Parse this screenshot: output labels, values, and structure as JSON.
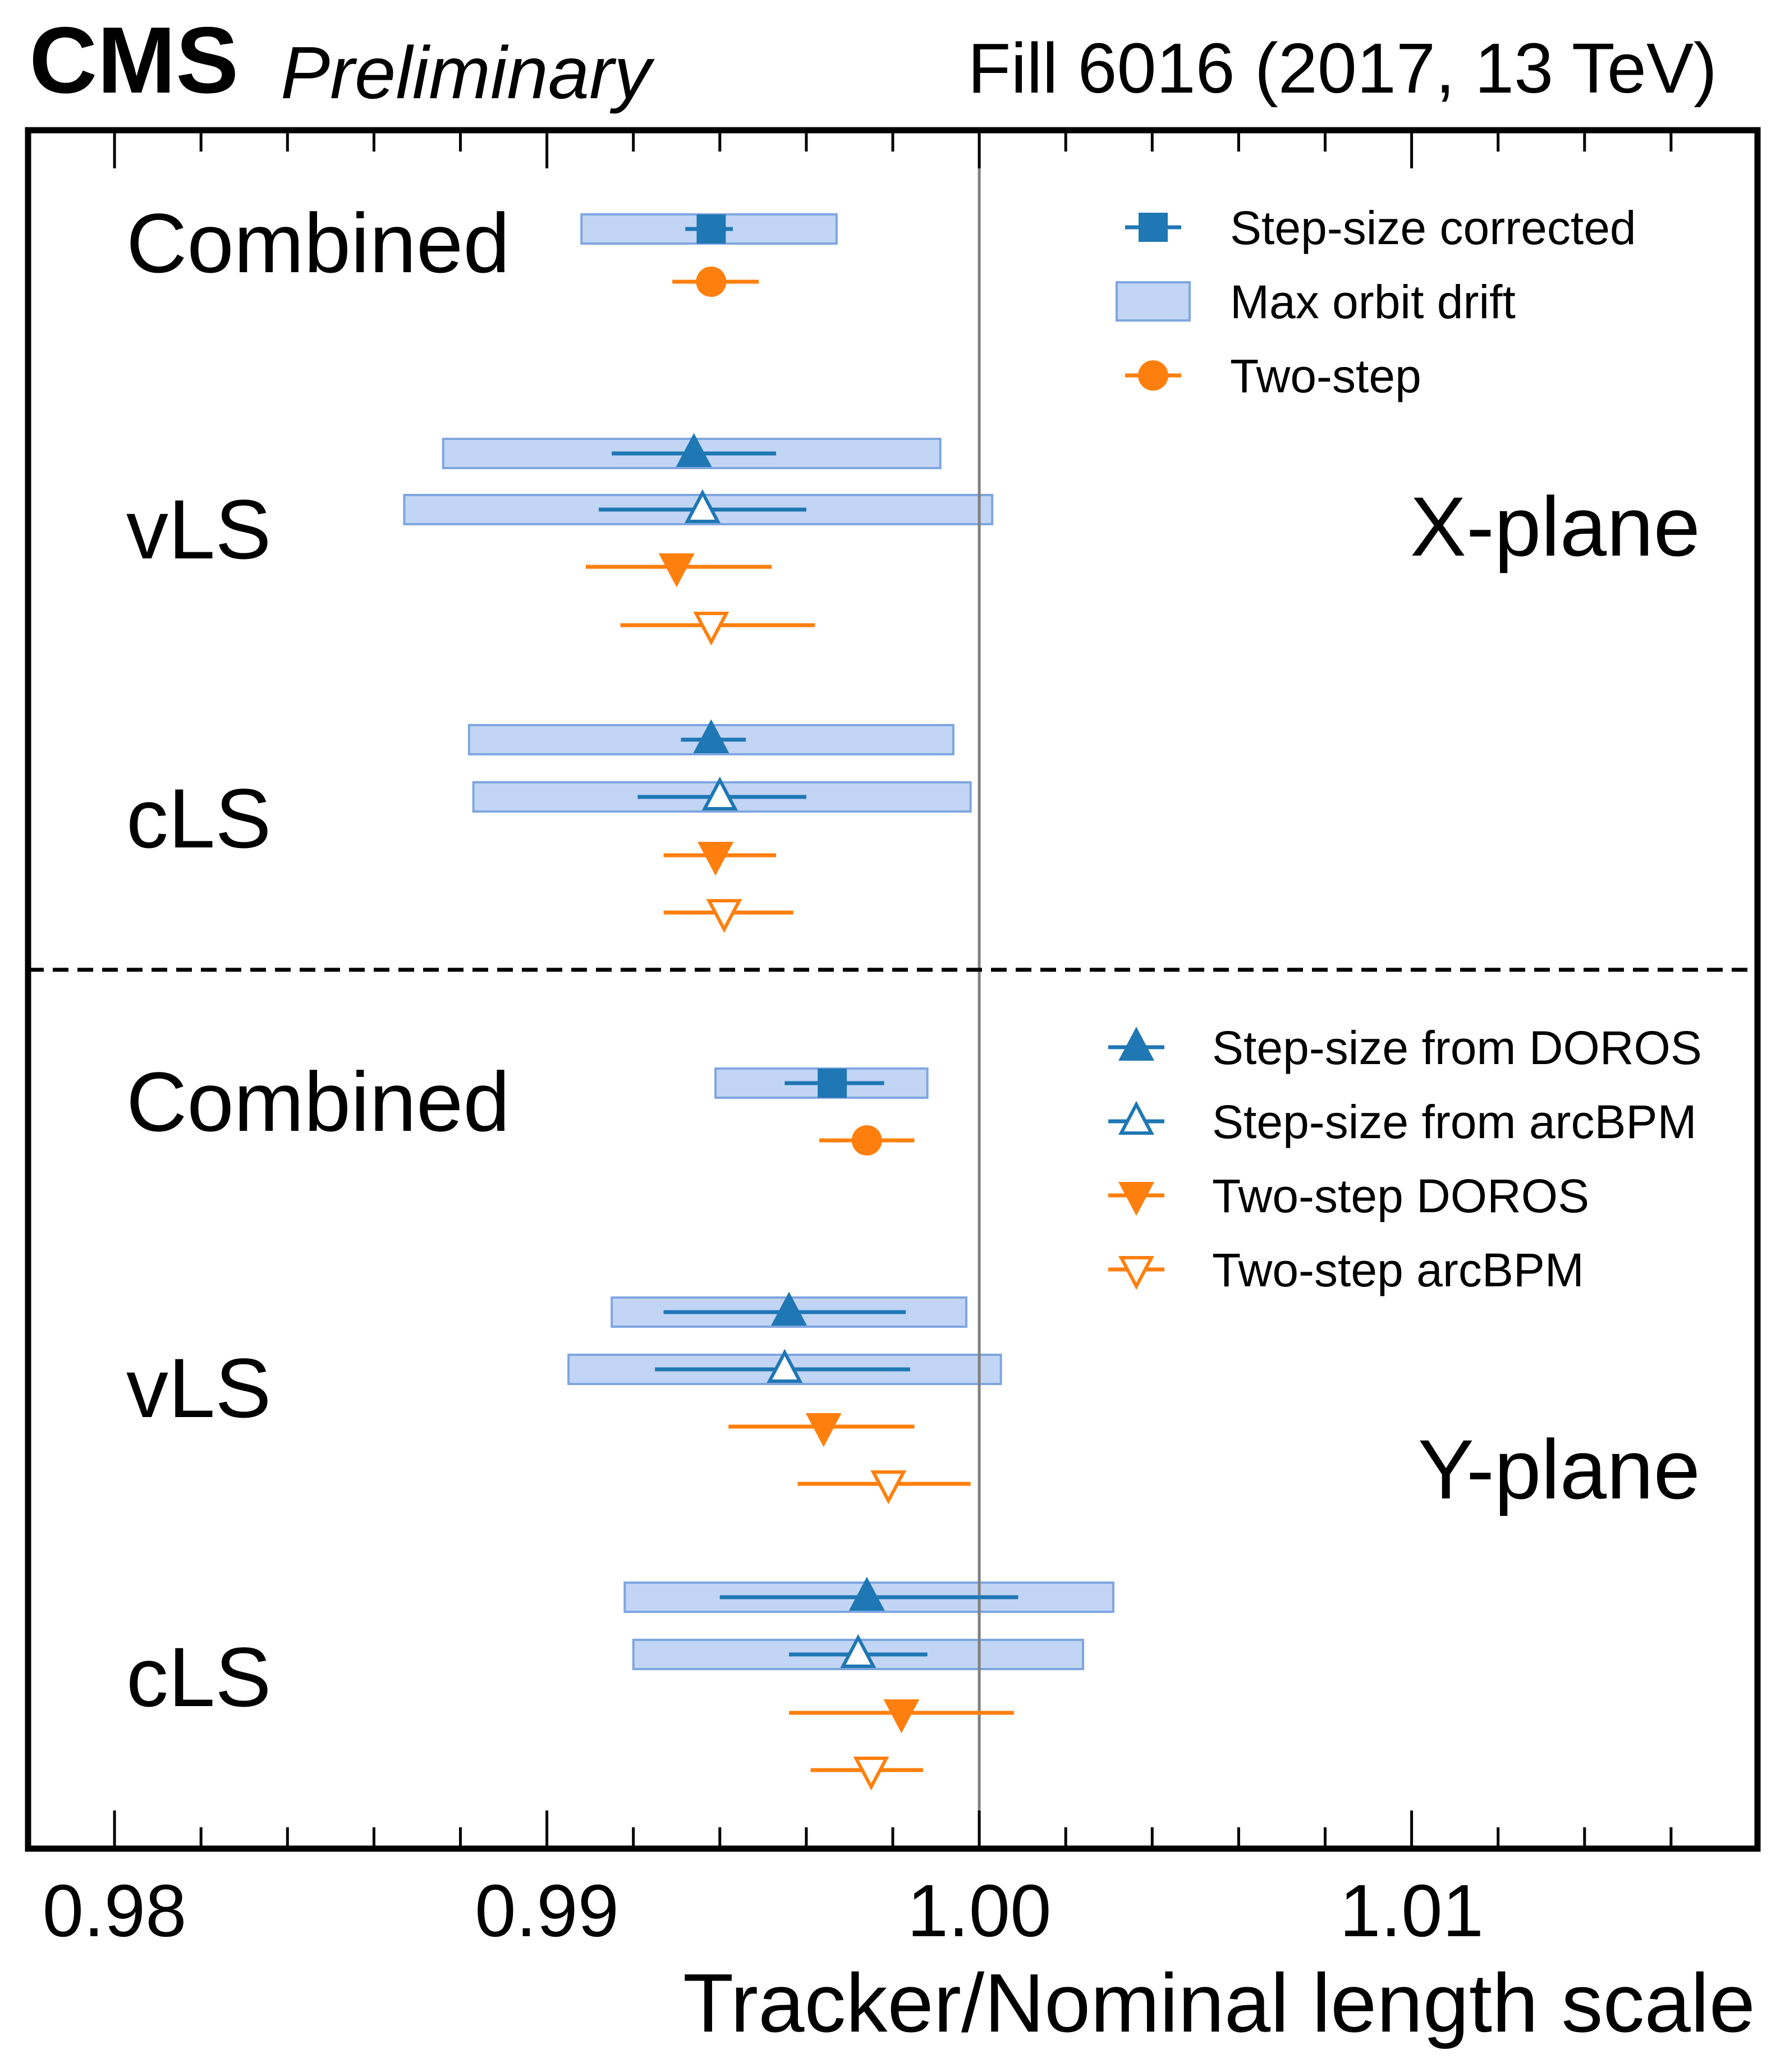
{
  "header": {
    "experiment": "CMS",
    "status": "Preliminary",
    "fill_label": "Fill 6016 (2017, 13 TeV)"
  },
  "colors": {
    "blue": "#1f77b4",
    "orange": "#ff7f0e",
    "band_fill": "#aec7f0",
    "band_edge": "#7ea6e0",
    "vline": "#808080"
  },
  "chart_data": {
    "type": "scatter",
    "xlabel": "Tracker/Nominal length scale",
    "xlim": [
      0.978,
      1.018
    ],
    "xticks": [
      {
        "value": 0.98,
        "label": "0.98"
      },
      {
        "value": 0.99,
        "label": "0.99"
      },
      {
        "value": 1.0,
        "label": "1.00"
      },
      {
        "value": 1.01,
        "label": "1.01"
      }
    ],
    "reference_line": 1.0,
    "legend_top": [
      {
        "key": "step_corrected",
        "label": "Step-size corrected"
      },
      {
        "key": "orbit_drift",
        "label": "Max orbit drift"
      },
      {
        "key": "two_step",
        "label": "Two-step"
      }
    ],
    "legend_bottom": [
      {
        "key": "step_doros",
        "label": "Step-size from DOROS"
      },
      {
        "key": "step_arcbpm",
        "label": "Step-size from arcBPM"
      },
      {
        "key": "two_doros",
        "label": "Two-step DOROS"
      },
      {
        "key": "two_arcbpm",
        "label": "Two-step arcBPM"
      }
    ],
    "panels": [
      {
        "name": "X-plane",
        "groups": [
          {
            "label": "Combined",
            "entries": [
              {
                "marker": "square",
                "color": "blue",
                "value": 0.9938,
                "err": [
                  0.9932,
                  0.9943
                ],
                "band": [
                  0.9908,
                  0.9967
                ]
              },
              {
                "marker": "circle",
                "color": "orange",
                "value": 0.9938,
                "err": [
                  0.9929,
                  0.9949
                ]
              }
            ]
          },
          {
            "label": "vLS",
            "entries": [
              {
                "marker": "tri-up",
                "color": "blue",
                "filled": true,
                "value": 0.9934,
                "err": [
                  0.9915,
                  0.9953
                ],
                "band": [
                  0.9876,
                  0.9991
                ]
              },
              {
                "marker": "tri-up",
                "color": "blue",
                "filled": false,
                "value": 0.9936,
                "err": [
                  0.9912,
                  0.996
                ],
                "band": [
                  0.9867,
                  1.0003
                ]
              },
              {
                "marker": "tri-down",
                "color": "orange",
                "filled": true,
                "value": 0.993,
                "err": [
                  0.9909,
                  0.9952
                ]
              },
              {
                "marker": "tri-down",
                "color": "orange",
                "filled": false,
                "value": 0.9938,
                "err": [
                  0.9917,
                  0.9962
                ]
              }
            ]
          },
          {
            "label": "cLS",
            "entries": [
              {
                "marker": "tri-up",
                "color": "blue",
                "filled": true,
                "value": 0.9938,
                "err": [
                  0.9931,
                  0.9946
                ],
                "band": [
                  0.9882,
                  0.9994
                ]
              },
              {
                "marker": "tri-up",
                "color": "blue",
                "filled": false,
                "value": 0.994,
                "err": [
                  0.9921,
                  0.996
                ],
                "band": [
                  0.9883,
                  0.9998
                ]
              },
              {
                "marker": "tri-down",
                "color": "orange",
                "filled": true,
                "value": 0.9939,
                "err": [
                  0.9927,
                  0.9953
                ]
              },
              {
                "marker": "tri-down",
                "color": "orange",
                "filled": false,
                "value": 0.9941,
                "err": [
                  0.9927,
                  0.9957
                ]
              }
            ]
          }
        ]
      },
      {
        "name": "Y-plane",
        "groups": [
          {
            "label": "Combined",
            "entries": [
              {
                "marker": "square",
                "color": "blue",
                "value": 0.9966,
                "err": [
                  0.9955,
                  0.9978
                ],
                "band": [
                  0.9939,
                  0.9988
                ]
              },
              {
                "marker": "circle",
                "color": "orange",
                "value": 0.9974,
                "err": [
                  0.9963,
                  0.9985
                ]
              }
            ]
          },
          {
            "label": "vLS",
            "entries": [
              {
                "marker": "tri-up",
                "color": "blue",
                "filled": true,
                "value": 0.9956,
                "err": [
                  0.9927,
                  0.9983
                ],
                "band": [
                  0.9915,
                  0.9997
                ]
              },
              {
                "marker": "tri-up",
                "color": "blue",
                "filled": false,
                "value": 0.9955,
                "err": [
                  0.9925,
                  0.9984
                ],
                "band": [
                  0.9905,
                  1.0005
                ]
              },
              {
                "marker": "tri-down",
                "color": "orange",
                "filled": true,
                "value": 0.9964,
                "err": [
                  0.9942,
                  0.9985
                ]
              },
              {
                "marker": "tri-down",
                "color": "orange",
                "filled": false,
                "value": 0.9979,
                "err": [
                  0.9958,
                  0.9998
                ]
              }
            ]
          },
          {
            "label": "cLS",
            "entries": [
              {
                "marker": "tri-up",
                "color": "blue",
                "filled": true,
                "value": 0.9974,
                "err": [
                  0.994,
                  1.0009
                ],
                "band": [
                  0.9918,
                  1.0031
                ]
              },
              {
                "marker": "tri-up",
                "color": "blue",
                "filled": false,
                "value": 0.9972,
                "err": [
                  0.9956,
                  0.9988
                ],
                "band": [
                  0.992,
                  1.0024
                ]
              },
              {
                "marker": "tri-down",
                "color": "orange",
                "filled": true,
                "value": 0.9982,
                "err": [
                  0.9956,
                  1.0008
                ]
              },
              {
                "marker": "tri-down",
                "color": "orange",
                "filled": false,
                "value": 0.9975,
                "err": [
                  0.9961,
                  0.9987
                ]
              }
            ]
          }
        ]
      }
    ]
  }
}
